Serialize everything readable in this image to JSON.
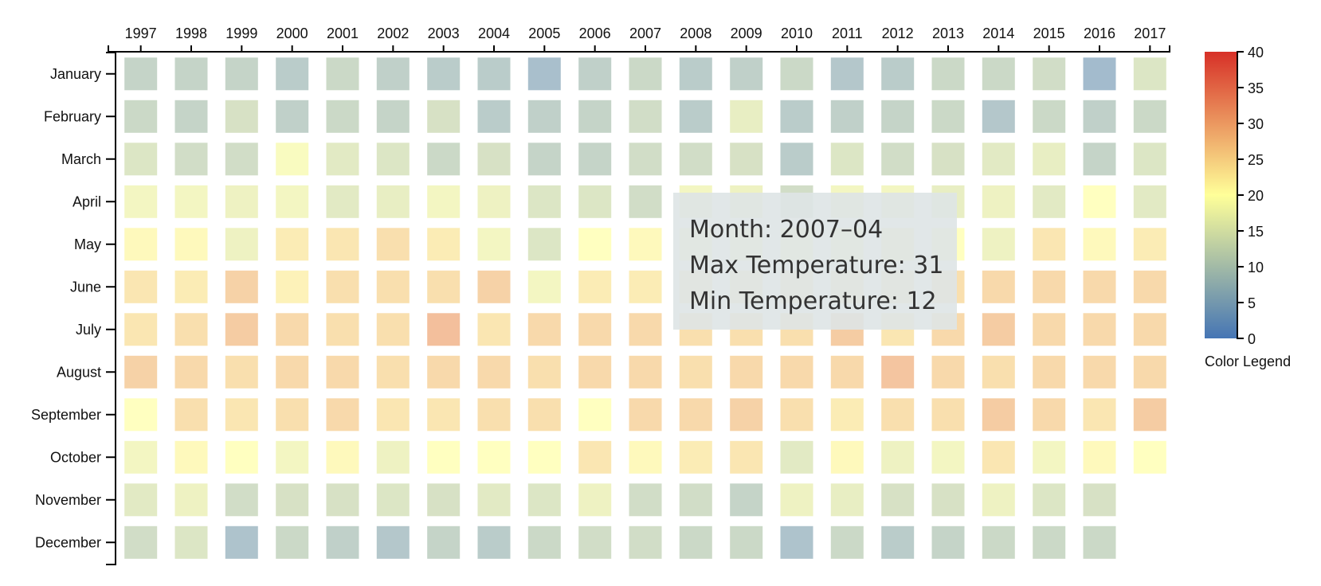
{
  "chart_data": {
    "type": "heatmap",
    "x": [
      "1997",
      "1998",
      "1999",
      "2000",
      "2001",
      "2002",
      "2003",
      "2004",
      "2005",
      "2006",
      "2007",
      "2008",
      "2009",
      "2010",
      "2011",
      "2012",
      "2013",
      "2014",
      "2015",
      "2016",
      "2017"
    ],
    "y": [
      "January",
      "February",
      "March",
      "April",
      "May",
      "June",
      "July",
      "August",
      "September",
      "October",
      "November",
      "December"
    ],
    "values": [
      [
        10,
        10,
        10,
        8,
        11,
        9,
        8,
        8,
        5,
        9,
        11,
        8,
        9,
        11,
        7,
        8,
        11,
        11,
        12,
        4,
        14
      ],
      [
        11,
        10,
        13,
        9,
        11,
        10,
        13,
        8,
        9,
        10,
        12,
        8,
        16,
        8,
        9,
        10,
        11,
        7,
        11,
        9,
        11
      ],
      [
        14,
        12,
        12,
        19,
        15,
        14,
        11,
        13,
        10,
        10,
        12,
        12,
        13,
        8,
        14,
        12,
        13,
        15,
        16,
        10,
        14
      ],
      [
        18,
        18,
        17,
        18,
        15,
        16,
        18,
        17,
        14,
        14,
        12,
        18,
        17,
        12,
        18,
        18,
        16,
        17,
        15,
        20,
        15
      ],
      [
        21,
        21,
        17,
        23,
        24,
        25,
        23,
        18,
        14,
        20,
        21,
        20,
        20,
        21,
        21,
        22,
        20,
        17,
        24,
        21,
        23
      ],
      [
        24,
        23,
        27,
        22,
        25,
        25,
        25,
        27,
        18,
        23,
        23,
        23,
        23,
        23,
        23,
        23,
        25,
        26,
        26,
        26,
        26
      ],
      [
        24,
        25,
        28,
        26,
        25,
        25,
        30,
        24,
        26,
        26,
        26,
        25,
        25,
        25,
        28,
        24,
        26,
        28,
        26,
        26,
        26
      ],
      [
        27,
        26,
        25,
        26,
        26,
        25,
        26,
        26,
        25,
        26,
        26,
        25,
        26,
        26,
        26,
        29,
        26,
        25,
        26,
        26,
        26
      ],
      [
        20,
        25,
        24,
        25,
        26,
        24,
        24,
        25,
        25,
        20,
        26,
        26,
        27,
        25,
        23,
        25,
        25,
        28,
        26,
        24,
        28
      ],
      [
        18,
        21,
        20,
        18,
        21,
        17,
        20,
        20,
        20,
        24,
        21,
        23,
        24,
        15,
        21,
        17,
        18,
        24,
        18,
        21,
        20
      ],
      [
        15,
        17,
        12,
        13,
        13,
        14,
        13,
        15,
        14,
        17,
        12,
        12,
        10,
        17,
        16,
        13,
        13,
        17,
        14,
        13,
        null
      ],
      [
        12,
        14,
        6,
        11,
        9,
        7,
        10,
        8,
        11,
        12,
        12,
        11,
        11,
        6,
        11,
        8,
        10,
        11,
        11,
        11,
        null
      ]
    ],
    "color_scale": {
      "min": 0,
      "max": 40,
      "ticks": [
        0,
        5,
        10,
        15,
        20,
        25,
        30,
        35,
        40
      ],
      "colors": [
        "#4575b4",
        "#ffff99",
        "#d73027"
      ],
      "label": "Color Legend"
    },
    "x_axis_position": "top",
    "legend_placement": "right"
  },
  "tooltip": {
    "month_line": "Month: 2007–04",
    "max_line": "Max Temperature: 31",
    "min_line": "Min Temperature: 12"
  }
}
